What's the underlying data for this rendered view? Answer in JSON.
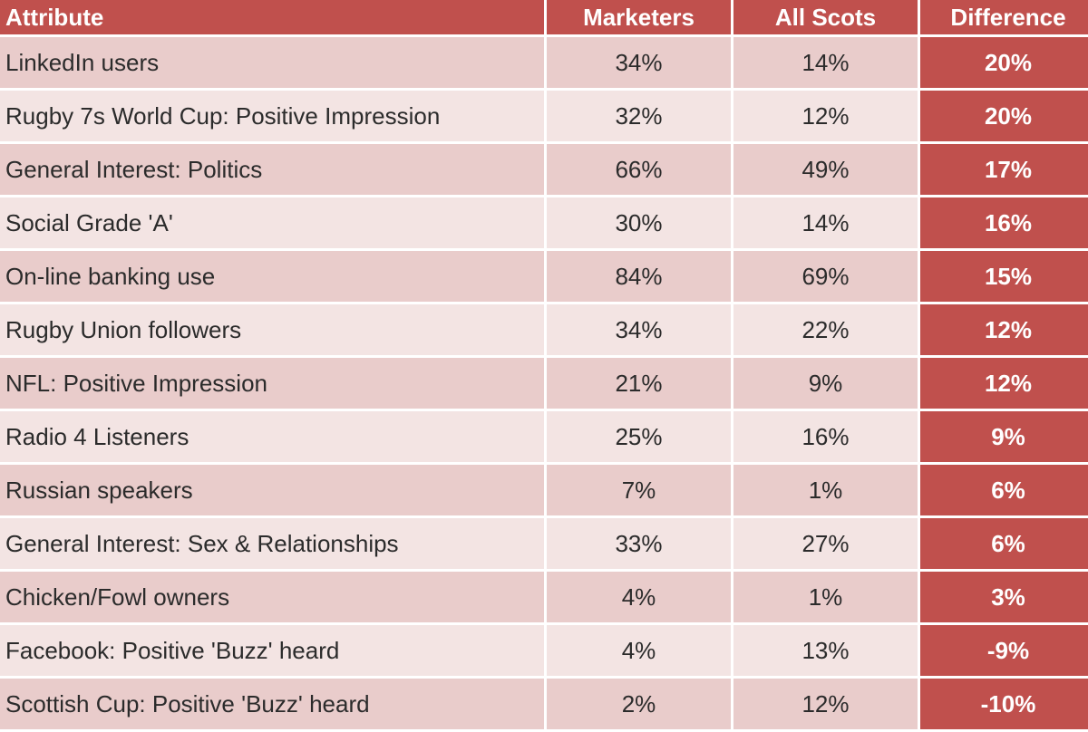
{
  "table": {
    "header": [
      "Attribute",
      "Marketers",
      "All Scots",
      "Difference"
    ],
    "rows": [
      [
        "LinkedIn users",
        "34%",
        "14%",
        "20%"
      ],
      [
        "Rugby 7s World Cup: Positive Impression",
        "32%",
        "12%",
        "20%"
      ],
      [
        "General Interest: Politics",
        "66%",
        "49%",
        "17%"
      ],
      [
        "Social Grade 'A'",
        "30%",
        "14%",
        "16%"
      ],
      [
        "On-line banking use",
        "84%",
        "69%",
        "15%"
      ],
      [
        "Rugby Union followers",
        "34%",
        "22%",
        "12%"
      ],
      [
        "NFL: Positive Impression",
        "21%",
        "9%",
        "12%"
      ],
      [
        "Radio 4 Listeners",
        "25%",
        "16%",
        "9%"
      ],
      [
        "Russian speakers",
        "7%",
        "1%",
        "6%"
      ],
      [
        "General Interest: Sex & Relationships",
        "33%",
        "27%",
        "6%"
      ],
      [
        "Chicken/Fowl owners",
        "4%",
        "1%",
        "3%"
      ],
      [
        "Facebook: Positive 'Buzz' heard",
        "4%",
        "13%",
        "-9%"
      ],
      [
        "Scottish Cup: Positive 'Buzz' heard",
        "2%",
        "12%",
        "-10%"
      ]
    ]
  }
}
